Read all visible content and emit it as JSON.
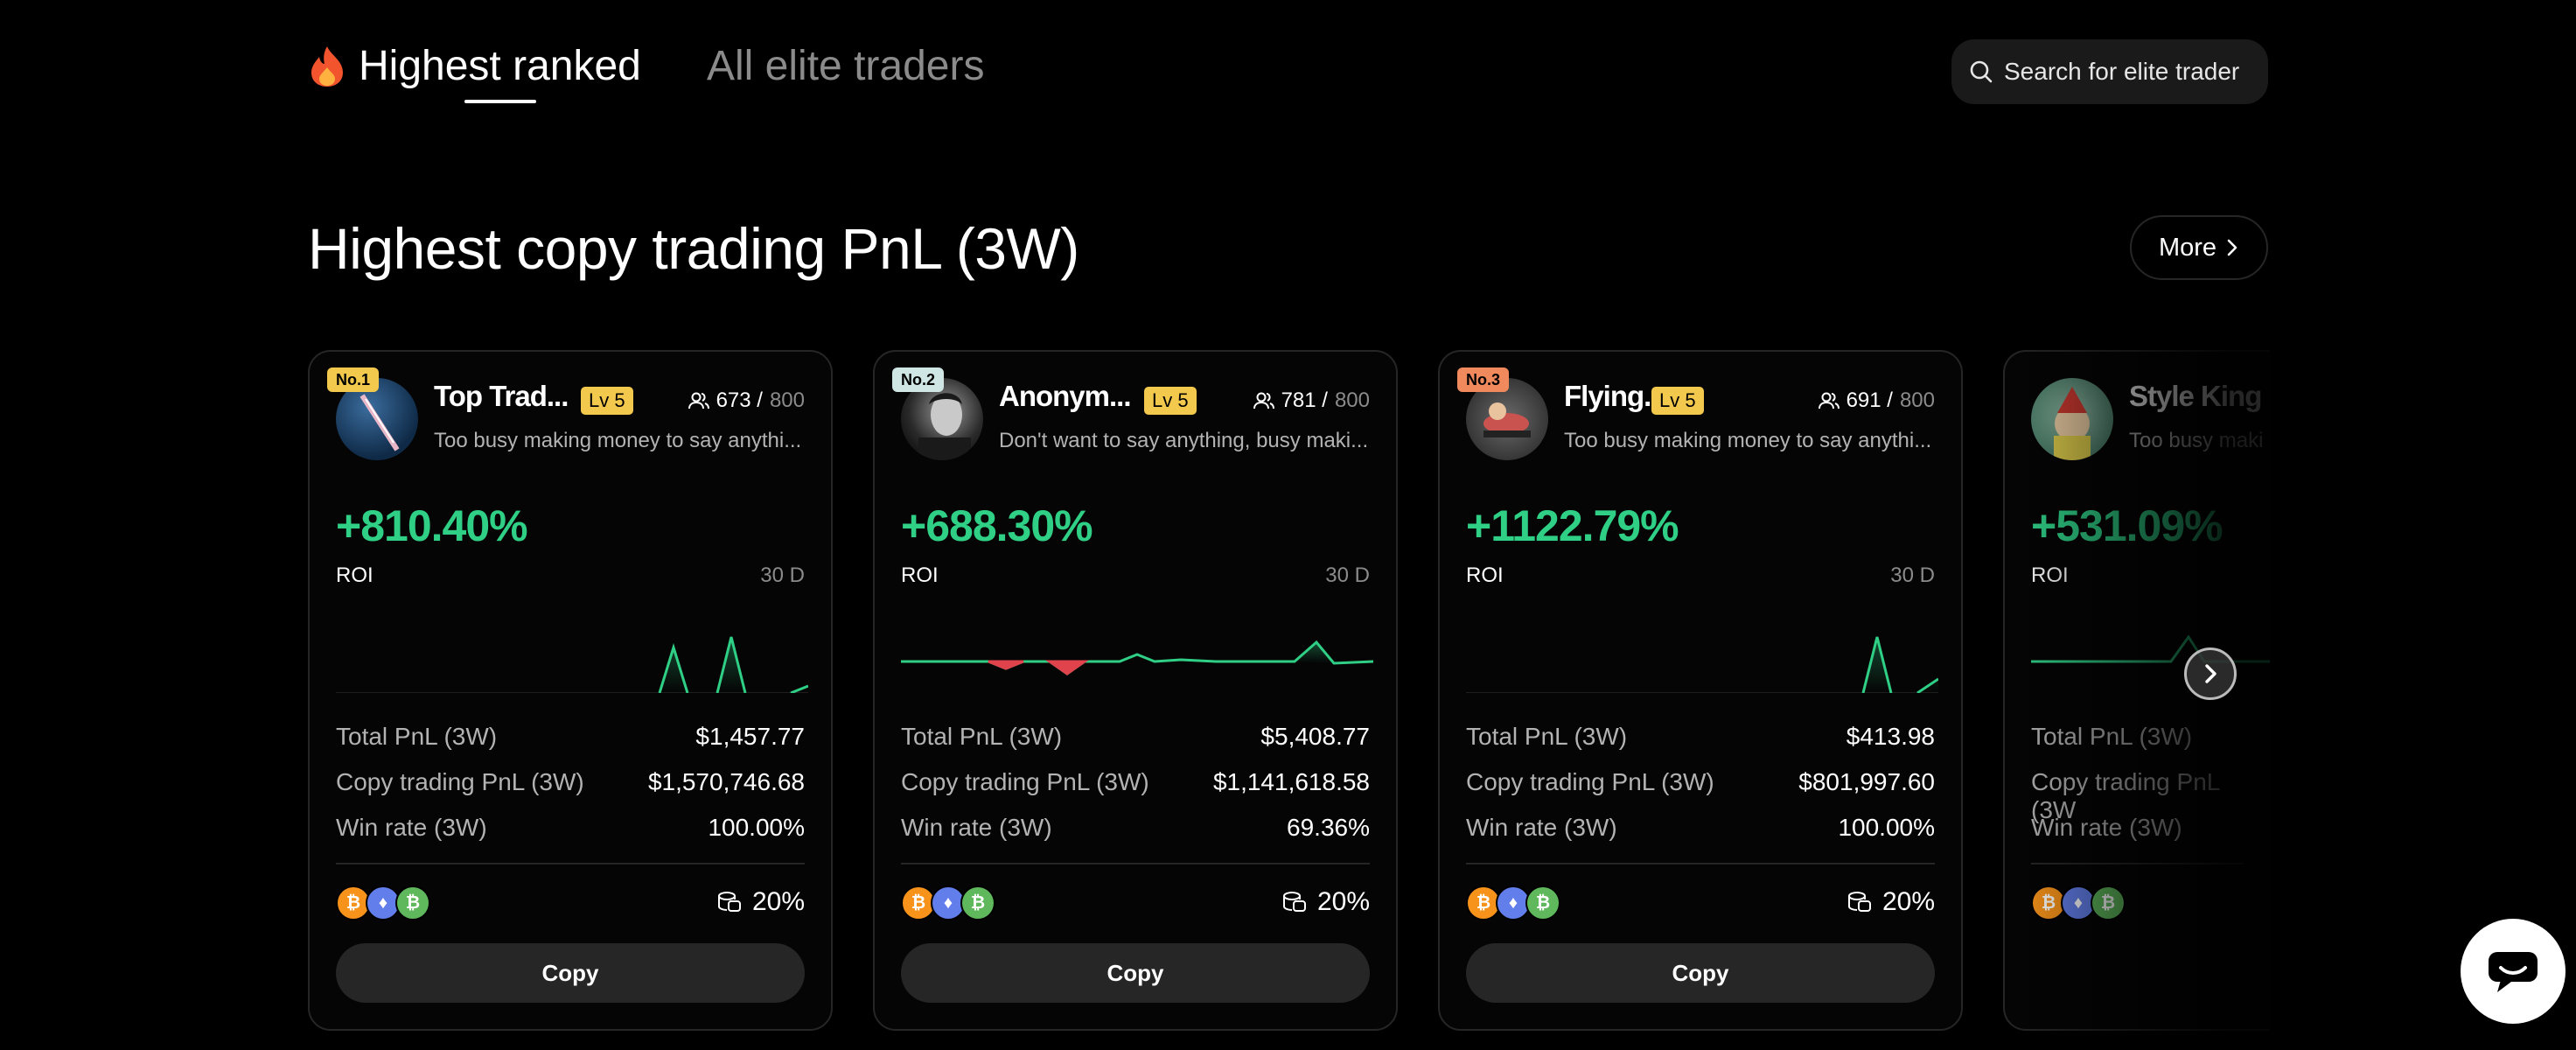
{
  "tabs": {
    "active": "Highest ranked",
    "inactive": "All elite traders"
  },
  "search": {
    "placeholder": "Search for elite trader"
  },
  "section": {
    "title": "Highest copy trading PnL (3W)",
    "more": "More"
  },
  "labels": {
    "roi": "ROI",
    "period": "30 D",
    "total_pnl": "Total PnL (3W)",
    "copy_pnl": "Copy trading PnL (3W)",
    "win_rate": "Win rate (3W)",
    "copy_button": "Copy"
  },
  "colors": {
    "accent_green": "#2fcf86",
    "loss_red": "#e0434c",
    "level_yellow": "#f2c94c"
  },
  "cards": [
    {
      "rank": "No.1",
      "name": "Top Trad...",
      "level": "Lv 5",
      "followers": "673 /",
      "followers_max": "800",
      "bio": "Too busy making money to say anythi...",
      "roi": "+810.40%",
      "total_pnl": "$1,457.77",
      "copy_pnl": "$1,570,746.68",
      "win_rate": "100.00%",
      "profit_share": "20%"
    },
    {
      "rank": "No.2",
      "name": "Anonym...",
      "level": "Lv 5",
      "followers": "781 /",
      "followers_max": "800",
      "bio": "Don't want to say anything, busy maki...",
      "roi": "+688.30%",
      "total_pnl": "$5,408.77",
      "copy_pnl": "$1,141,618.58",
      "win_rate": "69.36%",
      "profit_share": "20%"
    },
    {
      "rank": "No.3",
      "name": "Flying.",
      "level": "Lv 5",
      "followers": "691 /",
      "followers_max": "800",
      "bio": "Too busy making money to say anythi...",
      "roi": "+1122.79%",
      "total_pnl": "$413.98",
      "copy_pnl": "$801,997.60",
      "win_rate": "100.00%",
      "profit_share": "20%"
    },
    {
      "name": "Style King",
      "bio": "Too busy maki",
      "roi": "+531.09%",
      "total_pnl_label": "Total PnL (3W)",
      "copy_pnl_label": "Copy trading PnL (3W",
      "win_rate_label": "Win rate (3W)"
    }
  ],
  "icons": {
    "fire": "fire-icon",
    "search": "search-icon",
    "chevron": "chevron-right-icon",
    "followers": "users-icon",
    "share": "coins-stack-icon",
    "chat": "chat-icon",
    "coins": [
      "bitcoin-icon",
      "ethereum-icon",
      "bitcoin-sv-icon"
    ]
  }
}
